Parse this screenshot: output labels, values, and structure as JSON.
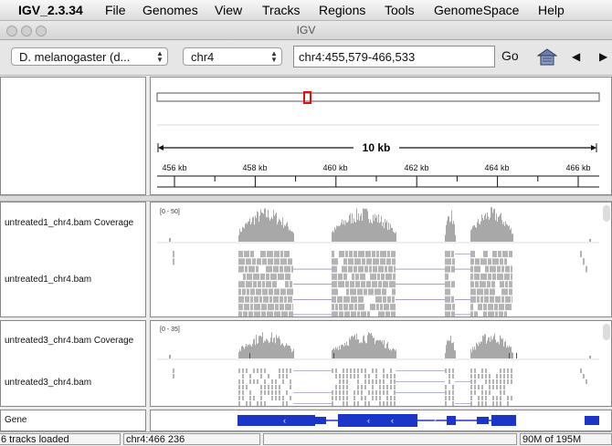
{
  "menubar": {
    "items": [
      "IGV_2.3.34",
      "File",
      "Genomes",
      "View",
      "Tracks",
      "Regions",
      "Tools",
      "GenomeSpace",
      "Help"
    ]
  },
  "window": {
    "title": "IGV"
  },
  "toolbar": {
    "genome": "D. melanogaster (d...",
    "chromosome": "chr4",
    "locus": "chr4:455,579-466,533",
    "go_label": "Go"
  },
  "ruler": {
    "scale_label": "10 kb",
    "ticks": [
      "456 kb",
      "458 kb",
      "460 kb",
      "462 kb",
      "464 kb",
      "466 kb"
    ]
  },
  "tracks": {
    "t1_coverage": {
      "name": "untreated1_chr4.bam Coverage",
      "range": "[0 - 50]"
    },
    "t1_reads": {
      "name": "untreated1_chr4.bam"
    },
    "t3_coverage": {
      "name": "untreated3_chr4.bam Coverage",
      "range": "[0 - 35]"
    },
    "t3_reads": {
      "name": "untreated3_chr4.bam"
    },
    "gene": {
      "name": "Gene"
    }
  },
  "status": {
    "tracks_loaded": "6 tracks loaded",
    "position": "chr4:466 236",
    "memory": "90M of 195M"
  },
  "colors": {
    "coverage": "#a8a8a8",
    "reads": "#b4b4b4",
    "gene": "#1a35c8",
    "region_box": "#e01010",
    "junction": "#6a6ab0"
  }
}
